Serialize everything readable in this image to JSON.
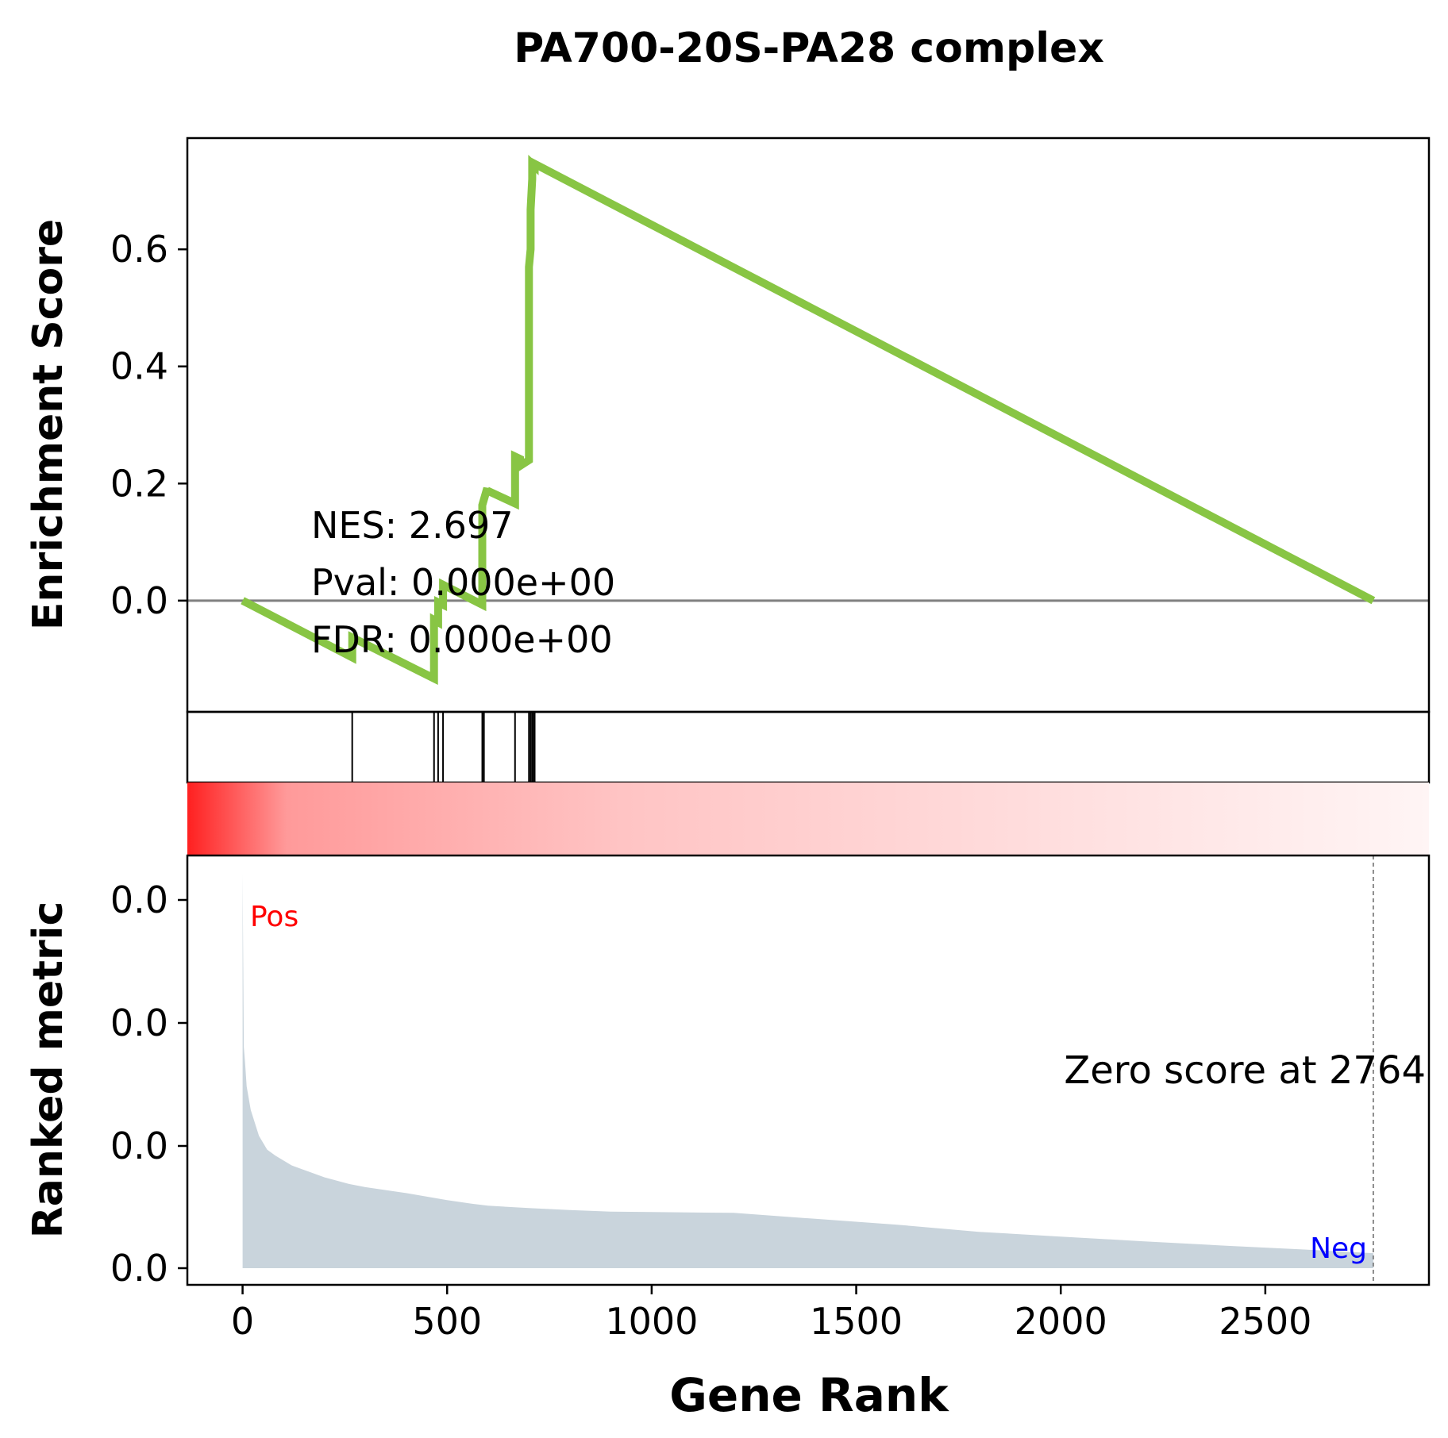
{
  "chart_data": {
    "type": "line",
    "title": "PA700-20S-PA28 complex",
    "xlabel": "Gene Rank",
    "xlim": [
      -135,
      2900
    ],
    "x_ticks": [
      "0",
      "500",
      "1000",
      "1500",
      "2000",
      "2500"
    ],
    "x_tick_values": [
      0,
      500,
      1000,
      1500,
      2000,
      2500
    ],
    "panels": {
      "enrichment": {
        "ylabel": "Enrichment Score",
        "ylim": [
          -0.19,
          0.79
        ],
        "y_ticks": [
          "0.0",
          "0.2",
          "0.4",
          "0.6"
        ],
        "y_tick_values": [
          0.0,
          0.2,
          0.4,
          0.6
        ],
        "line_color": "#88c544",
        "zero_line_color": "#808080",
        "series": [
          {
            "x": [
              0,
              268,
              268,
              468,
              468,
              478,
              478,
              490,
              490,
              586,
              586,
              598,
              598,
              666,
              666,
              678,
              678,
              700,
              700,
              704,
              704,
              708,
              708,
              714,
              714,
              2764
            ],
            "y": [
              0.0,
              -0.097,
              -0.063,
              -0.133,
              -0.033,
              -0.037,
              -0.003,
              -0.007,
              0.027,
              -0.007,
              0.163,
              0.192,
              0.188,
              0.166,
              0.246,
              0.242,
              0.23,
              0.24,
              0.57,
              0.6,
              0.668,
              0.72,
              0.746,
              0.742,
              0.746,
              0.0
            ]
          }
        ],
        "annotations": [
          "NES: 2.697",
          "Pval: 0.000e+00",
          "FDR: 0.000e+00"
        ]
      },
      "hits": {
        "positions": [
          268,
          468,
          478,
          490,
          586,
          590,
          666,
          700,
          704,
          708,
          712,
          714
        ]
      },
      "heatmap": {
        "colormap": "reds (high to low)",
        "start_color": "#ff2020",
        "end_color": "#fff5f5"
      },
      "ranked_metric": {
        "ylabel": "Ranked metric",
        "y_ticks": [
          "0.0",
          "0.0",
          "0.0",
          "0.0"
        ],
        "fill_color": "#c9d4dc",
        "pos_label": "Pos",
        "pos_color": "#ff0000",
        "neg_label": "Neg",
        "neg_color": "#0000ff",
        "zero_score_text": "Zero score at 2764",
        "zero_score_rank": 2764,
        "x": [
          0,
          3,
          6,
          10,
          20,
          40,
          60,
          80,
          120,
          160,
          200,
          260,
          300,
          400,
          500,
          560,
          600,
          700,
          800,
          900,
          1000,
          1200,
          1400,
          1600,
          1800,
          2000,
          2200,
          2400,
          2600,
          2764
        ],
        "values": [
          1.0,
          0.56,
          0.52,
          0.46,
          0.4,
          0.335,
          0.3,
          0.285,
          0.26,
          0.245,
          0.23,
          0.213,
          0.205,
          0.19,
          0.172,
          0.163,
          0.158,
          0.152,
          0.147,
          0.143,
          0.142,
          0.14,
          0.125,
          0.11,
          0.092,
          0.08,
          0.068,
          0.057,
          0.047,
          0.038
        ]
      }
    }
  }
}
